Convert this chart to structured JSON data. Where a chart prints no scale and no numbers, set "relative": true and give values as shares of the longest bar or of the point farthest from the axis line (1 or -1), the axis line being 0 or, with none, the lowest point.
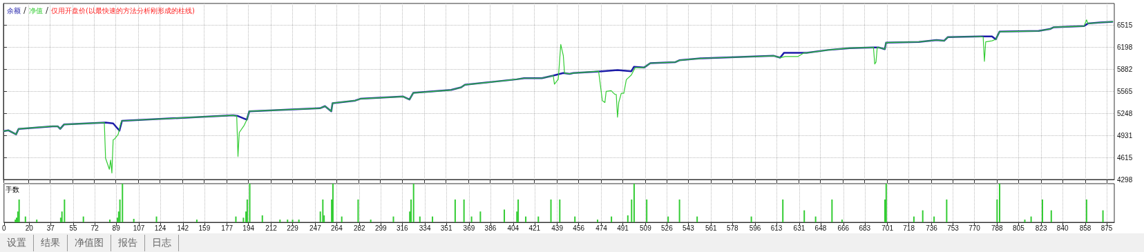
{
  "chart_data": [
    {
      "type": "line",
      "legend": "top left",
      "grid": true,
      "tick_labels": "y",
      "annotations": [
        "仅用开盘价(以最快速的方法分析刚形成的柱线)"
      ],
      "xlim": [
        0,
        881
      ],
      "xticks": [
        0,
        20,
        37,
        55,
        72,
        89,
        107,
        124,
        142,
        159,
        177,
        194,
        212,
        229,
        247,
        264,
        282,
        299,
        316,
        334,
        351,
        369,
        386,
        404,
        421,
        439,
        456,
        474,
        491,
        509,
        526,
        543,
        561,
        578,
        596,
        613,
        631,
        648,
        666,
        683,
        701,
        718,
        736,
        753,
        770,
        788,
        805,
        823,
        840,
        858,
        875
      ],
      "ylim": [
        4298,
        6830
      ],
      "yticks": [
        4298,
        4615,
        4931,
        5248,
        5565,
        5882,
        6198,
        6515
      ],
      "series": [
        {
          "name": "余额",
          "color": "#1c1ca8",
          "x": [
            0,
            4,
            10,
            12,
            39,
            43,
            45,
            48,
            81,
            87,
            92,
            94,
            182,
            186,
            193,
            195,
            251,
            255,
            260,
            261,
            279,
            283,
            317,
            322,
            325,
            355,
            363,
            366,
            407,
            413,
            427,
            436,
            444,
            449,
            452,
            475,
            487,
            498,
            500,
            508,
            513,
            533,
            536,
            553,
            611,
            616,
            619,
            637,
            654,
            671,
            689,
            694,
            699,
            700,
            726,
            740,
            746,
            749,
            775,
            784,
            787,
            790,
            821,
            830,
            833,
            857,
            860,
            870,
            880
          ],
          "values": [
            4994,
            5005,
            4947,
            5026,
            5063,
            5063,
            5026,
            5089,
            5116,
            5105,
            5000,
            5142,
            5221,
            5211,
            5158,
            5279,
            5322,
            5353,
            5279,
            5396,
            5433,
            5459,
            5491,
            5448,
            5543,
            5586,
            5623,
            5660,
            5739,
            5755,
            5755,
            5792,
            5829,
            5818,
            5829,
            5855,
            5871,
            5855,
            5918,
            5908,
            5971,
            5987,
            6013,
            6040,
            6077,
            6050,
            6119,
            6119,
            6161,
            6188,
            6198,
            6198,
            6172,
            6267,
            6277,
            6304,
            6293,
            6346,
            6356,
            6356,
            6314,
            6425,
            6435,
            6462,
            6488,
            6504,
            6541,
            6557,
            6568
          ]
        },
        {
          "name": "净值",
          "color": "#33cc33",
          "x": [
            0,
            4,
            10,
            12,
            39,
            43,
            45,
            48,
            79,
            80,
            81,
            84,
            85,
            86,
            87,
            88,
            91,
            93,
            94,
            182,
            185,
            186,
            187,
            191,
            193,
            195,
            251,
            255,
            260,
            261,
            279,
            283,
            317,
            322,
            325,
            355,
            363,
            366,
            407,
            413,
            427,
            436,
            437,
            440,
            442,
            444,
            445,
            449,
            452,
            472,
            475,
            477,
            478,
            482,
            484,
            485,
            486,
            487,
            488,
            490,
            492,
            494,
            498,
            501,
            508,
            513,
            533,
            536,
            553,
            611,
            616,
            620,
            630,
            635,
            637,
            654,
            671,
            689,
            690,
            691,
            692,
            693,
            694,
            699,
            700,
            726,
            740,
            746,
            749,
            775,
            777,
            778,
            779,
            784,
            787,
            790,
            821,
            830,
            833,
            857,
            859,
            860,
            870,
            880
          ],
          "values": [
            4994,
            5005,
            4947,
            5026,
            5063,
            5063,
            5026,
            5089,
            5116,
            5116,
            4604,
            4445,
            4577,
            4392,
            4868,
            4878,
            4947,
            5105,
            5142,
            5221,
            5211,
            4630,
            4973,
            5079,
            5158,
            5279,
            5322,
            5353,
            5279,
            5396,
            5433,
            5459,
            5491,
            5448,
            5543,
            5586,
            5623,
            5660,
            5739,
            5755,
            5755,
            5792,
            5670,
            5739,
            6240,
            6082,
            5829,
            5818,
            5829,
            5855,
            5432,
            5406,
            5565,
            5575,
            5538,
            5522,
            5522,
            5195,
            5406,
            5538,
            5538,
            5734,
            5802,
            5908,
            5908,
            5971,
            5987,
            6013,
            6040,
            6077,
            6050,
            6066,
            6066,
            6119,
            6119,
            6161,
            6188,
            6198,
            6198,
            5960,
            5987,
            6198,
            6198,
            6172,
            6267,
            6277,
            6304,
            6293,
            6346,
            6356,
            6346,
            5998,
            6277,
            6293,
            6314,
            6425,
            6435,
            6462,
            6488,
            6504,
            6594,
            6541,
            6557,
            6568
          ]
        }
      ]
    },
    {
      "type": "bar",
      "relative": true,
      "ylabel": "手数",
      "color": "#33cc33",
      "grid": "x",
      "tick_labels": "x",
      "annotations": [
        "设置",
        "结果",
        "净值图",
        "报告",
        "日志"
      ],
      "xlim": [
        0,
        881
      ],
      "xticks": [
        0,
        20,
        37,
        55,
        72,
        89,
        107,
        124,
        142,
        159,
        177,
        194,
        212,
        229,
        247,
        264,
        282,
        299,
        316,
        334,
        351,
        369,
        386,
        404,
        421,
        439,
        456,
        474,
        491,
        509,
        526,
        543,
        561,
        578,
        596,
        613,
        631,
        648,
        666,
        683,
        701,
        718,
        736,
        753,
        770,
        788,
        805,
        823,
        840,
        858,
        875
      ],
      "x": [
        9,
        10,
        11,
        12,
        17,
        26,
        45,
        46,
        48,
        63,
        84,
        90,
        91,
        92,
        94,
        103,
        121,
        153,
        184,
        190,
        192,
        193,
        195,
        205,
        219,
        225,
        229,
        234,
        251,
        253,
        254,
        260,
        261,
        268,
        281,
        291,
        309,
        322,
        323,
        325,
        330,
        340,
        358,
        365,
        371,
        378,
        397,
        407,
        408,
        414,
        424,
        434,
        441,
        453,
        471,
        482,
        495,
        498,
        500,
        510,
        527,
        536,
        550,
        593,
        618,
        635,
        644,
        657,
        665,
        699,
        700,
        722,
        729,
        738,
        748,
        788,
        790,
        810,
        815,
        824,
        831,
        859,
        872
      ],
      "values": [
        0.07,
        0.12,
        0.28,
        0.59,
        0.15,
        0.07,
        0.12,
        0.28,
        0.59,
        0.15,
        0.07,
        0.12,
        0.28,
        0.59,
        1,
        0.09,
        0.15,
        0.07,
        0.15,
        0.12,
        0.28,
        0.59,
        1,
        0.18,
        0.07,
        0.07,
        0.07,
        0.07,
        0.28,
        0.59,
        0.18,
        0.59,
        1,
        0.15,
        0.59,
        0.07,
        0.15,
        0.28,
        0.59,
        1,
        0.15,
        0.15,
        0.59,
        0.59,
        0.15,
        0.28,
        0.33,
        0.28,
        0.59,
        0.15,
        0.15,
        0.59,
        0.59,
        0.15,
        0.07,
        0.15,
        0.18,
        0.59,
        1,
        0.59,
        0.15,
        0.59,
        0.15,
        0.15,
        0.59,
        0.31,
        0.15,
        0.59,
        0.07,
        0.59,
        1,
        0.15,
        0.31,
        0.15,
        0.59,
        0.59,
        1,
        0.07,
        0.15,
        0.59,
        0.31,
        0.59,
        0.31
      ]
    }
  ]
}
